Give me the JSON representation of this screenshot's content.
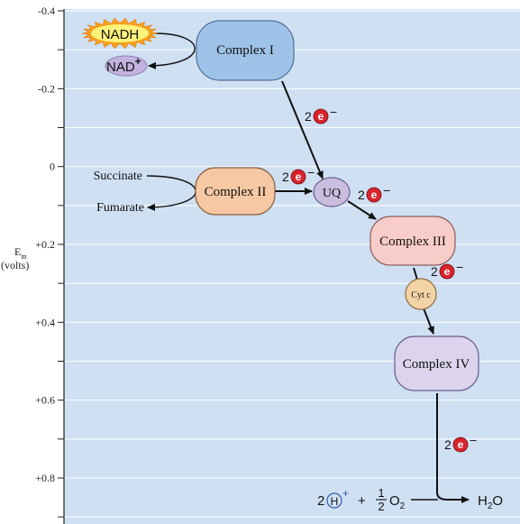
{
  "axis": {
    "label_main": "E",
    "label_sub": "m",
    "unit": "(volts)",
    "ticks": [
      {
        "label": "-0.4",
        "value": -0.4
      },
      {
        "label": "-0.2",
        "value": -0.2
      },
      {
        "label": "0",
        "value": 0
      },
      {
        "label": "+0.2",
        "value": 0.2
      },
      {
        "label": "+0.4",
        "value": 0.4
      },
      {
        "label": "+0.6",
        "value": 0.6
      },
      {
        "label": "+0.8",
        "value": 0.8
      }
    ]
  },
  "nadh": {
    "label": "NADH",
    "product_main": "NAD",
    "product_sup": "+"
  },
  "complexes": {
    "c1": "Complex I",
    "c2": "Complex II",
    "c3": "Complex III",
    "c4": "Complex IV",
    "uq": "UQ",
    "cytc": "Cyt c"
  },
  "substrates": {
    "succinate": "Succinate",
    "fumarate": "Fumarate"
  },
  "electron": {
    "coef": "2",
    "symbol": "e",
    "charge": "−"
  },
  "final": {
    "coef": "2",
    "proton": "H",
    "proton_charge": "+",
    "plus": "+",
    "frac_num": "1",
    "frac_den": "2",
    "oxygen": "O",
    "oxygen_sub": "2",
    "water": "H",
    "water_sub": "2",
    "water_o": "O"
  },
  "colors": {
    "background": "#cfe0f3",
    "grid": "#ffffff",
    "complex1": "#9fc3e8",
    "complex2": "#f6c9a4",
    "complex3": "#f8cdc9",
    "complex4": "#dcd4ec",
    "uq": "#c9bedf",
    "cytc": "#f4d3a6",
    "nad": "#c3b2de",
    "nadh_star": "#f6a11c",
    "nadh_inner": "#fff27a",
    "electron": "#d8242c",
    "proton": "#2d58a8"
  }
}
